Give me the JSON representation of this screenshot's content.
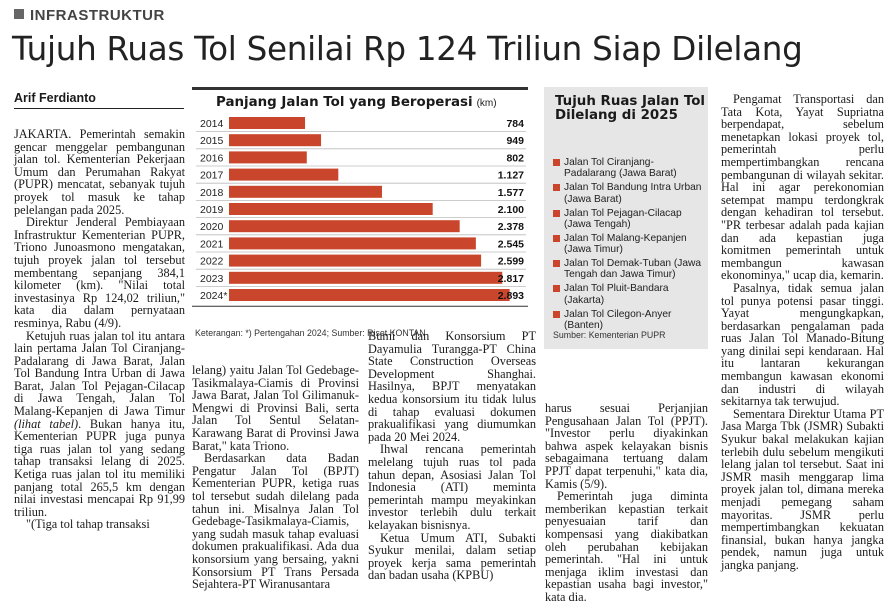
{
  "section": "INFRASTRUKTUR",
  "headline": "Tujuh Ruas Tol Senilai Rp 124 Triliun Siap Dilelang",
  "author": "Arif Ferdianto",
  "chart_data": {
    "type": "bar",
    "orientation": "horizontal",
    "title": "Panjang Jalan Tol yang Beroperasi",
    "unit": "(km)",
    "categories": [
      "2014",
      "2015",
      "2016",
      "2017",
      "2018",
      "2019",
      "2020",
      "2021",
      "2022",
      "2023",
      "2024*"
    ],
    "values": [
      784,
      949,
      802,
      1127,
      1577,
      2100,
      2378,
      2545,
      2599,
      2817,
      2893
    ],
    "value_labels": [
      "784",
      "949",
      "802",
      "1.127",
      "1.577",
      "2.100",
      "2.378",
      "2.545",
      "2.599",
      "2.817",
      "2.893"
    ],
    "xlim": [
      0,
      3000
    ],
    "bar_color": "#c9462c",
    "note": "Keterangan: *) Pertengahan 2024; Sumber: Riset KONTAN"
  },
  "sidebar": {
    "title": "Tujuh Ruas Jalan Tol Dilelang di 2025",
    "items": [
      "Jalan Tol Ciranjang-Padalarang (Jawa Barat)",
      "Jalan Tol Bandung Intra Urban (Jawa Barat)",
      "Jalan Tol Pejagan-Cilacap (Jawa Tengah)",
      "Jalan Tol Malang-Kepanjen (Jawa Timur)",
      "Jalan Tol Demak-Tuban (Jawa Tengah dan Jawa Timur)",
      "Jalan Tol Pluit-Bandara (Jakarta)",
      "Jalan Tol Cilegon-Anyer (Banten)"
    ],
    "source": "Sumber: Kementerian PUPR",
    "bullet_color": "#c9462c",
    "background": "#e6e6e6"
  },
  "body": {
    "col1": [
      "JAKARTA. Pemerintah semakin gencar menggelar pembangunan jalan tol. Kementerian Pekerjaan Umum dan Perumahan Rakyat (PUPR) mencatat, sebanyak tujuh proyek tol masuk ke tahap pelelangan pada 2025.",
      "Direktur Jenderal Pembiayaan Infrastruktur Kementerian PUPR, Triono Junoasmono mengatakan, tujuh proyek jalan tol tersebut membentang sepanjang 384,1 kilometer (km). \"Nilai total investasinya Rp 124,02 triliun,\" kata dia dalam pernyataan resminya, Rabu (4/9).",
      "Ketujuh ruas jalan tol itu antara lain pertama Jalan Tol Ciranjang-Padalarang di Jawa Barat, Jalan Tol Bandung Intra Urban di Jawa Barat, Jalan Tol Pejagan-Cilacap di Jawa Tengah, Jalan Tol Malang-Kepanjen di Jawa Timur (lihat tabel). Bukan hanya itu, Kementerian PUPR juga punya tiga ruas jalan tol yang sedang tahap transaksi lelang di 2025. Ketiga ruas jalan tol itu memiliki panjang total 265,5 km dengan nilai investasi mencapai Rp 91,99 triliun.",
      "\"(Tiga tol tahap transaksi"
    ],
    "col2": [
      "lelang) yaitu Jalan Tol Gedebage-Tasikmalaya-Ciamis di Provinsi Jawa Barat, Jalan Tol Gilimanuk-Mengwi di Provinsi Bali, serta Jalan Tol Sentul Selatan-Karawang Barat di Provinsi Jawa Barat,\" kata Triono.",
      "Berdasarkan data Badan Pengatur Jalan Tol (BPJT) Kementerian PUPR, ketiga ruas tol tersebut sudah dilelang pada tahun ini. Misalnya Jalan Tol Gedebage-Tasikmalaya-Ciamis, yang sudah masuk tahap evaluasi dokumen prakualifikasi. Ada dua konsorsium yang bersaing, yakni Konsorsium PT Trans Persada Sejahtera-PT Wiranusantara"
    ],
    "col3": [
      "Bumi dan Konsorsium PT Dayamulia Turangga-PT China State Construction Overseas Development Shanghai. Hasilnya, BPJT menyatakan kedua konsorsium itu tidak lulus di tahap evaluasi dokumen prakualifikasi yang diumumkan pada 20 Mei 2024.",
      "Ihwal rencana pemerintah melelang tujuh ruas tol pada tahun depan, Asosiasi Jalan Tol Indonesia (ATI) meminta pemerintah mampu meyakinkan investor terlebih dulu terkait kelayakan bisnisnya.",
      "Ketua Umum ATI, Subakti Syukur menilai, dalam setiap proyek kerja sama pemerintah dan badan usaha (KPBU)"
    ],
    "col4": [
      "harus sesuai Perjanjian Pengusahaan Jalan Tol (PPJT). \"Investor perlu diyakinkan bahwa aspek kelayakan bisnis sebagaimana tertuang dalam PPJT dapat terpenuhi,\" kata dia, Kamis (5/9).",
      "Pemerintah juga diminta memberikan kepastian terkait penyesuaian tarif dan kompensasi yang diakibatkan oleh perubahan kebijakan pemerintah. \"Hal ini untuk menjaga iklim investasi dan kepastian usaha bagi investor,\" kata dia."
    ],
    "col5": [
      "Pengamat Transportasi dan Tata Kota, Yayat Supriatna berpendapat, sebelum menetapkan lokasi proyek tol, pemerintah perlu mempertimbangkan rencana pembangunan di wilayah sekitar. Hal ini agar perekonomian setempat mampu terdongkrak dengan kehadiran tol tersebut. \"PR terbesar adalah pada kajian dan ada kepastian juga komitmen pemerintah untuk membangun kawasan ekonominya,\" ucap dia, kemarin.",
      "Pasalnya, tidak semua jalan tol punya potensi pasar tinggi. Yayat mengungkapkan, berdasarkan pengalaman pada ruas Jalan Tol Manado-Bitung yang dinilai sepi kendaraan. Hal itu lantaran kekurangan membangun kawasan ekonomi dan industri di wilayah sekitarnya tak terwujud.",
      "Sementara Direktur Utama PT Jasa Marga Tbk (JSMR) Subakti Syukur bakal melakukan kajian terlebih dulu sebelum mengikuti lelang jalan tol tersebut. Saat ini JSMR masih menggarap lima proyek jalan tol, dimana mereka menjadi pemegang saham mayoritas. JSMR perlu mempertimbangkan kekuatan finansial, bukan hanya jangka pendek, namun juga untuk jangka panjang."
    ]
  }
}
